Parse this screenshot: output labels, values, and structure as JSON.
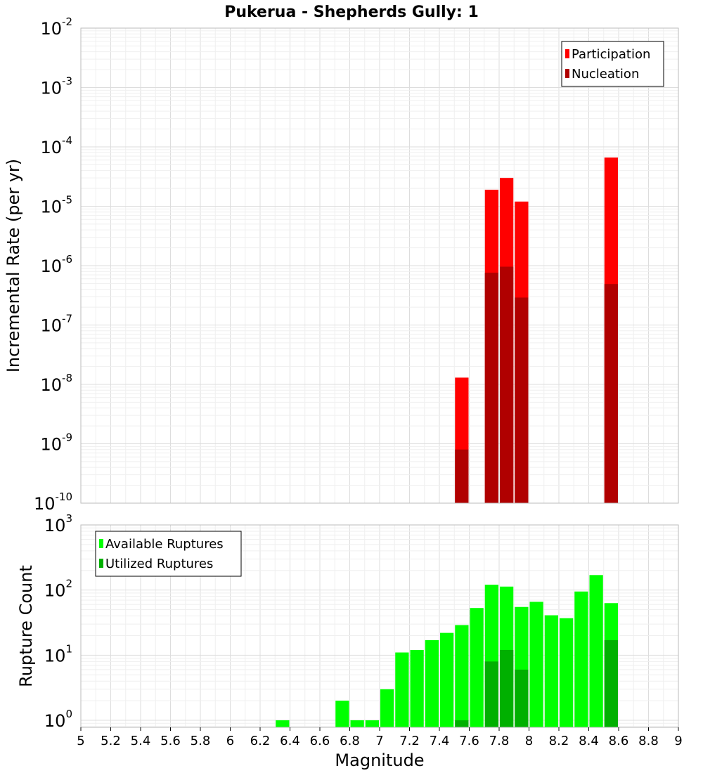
{
  "chart_data": [
    {
      "type": "bar",
      "title": "Pukerua - Shepherds Gully: 1",
      "xlabel": "Magnitude",
      "ylabel": "Incremental Rate (per yr)",
      "yscale": "log",
      "xlim": [
        5,
        9
      ],
      "ylim": [
        1e-10,
        0.01
      ],
      "bin_width": 0.1,
      "legend_position": "top-right",
      "colors": {
        "Participation": "#ff0000",
        "Nucleation": "#b00000"
      },
      "series": [
        {
          "name": "Participation",
          "x": [
            7.55,
            7.75,
            7.85,
            7.95,
            8.55
          ],
          "values": [
            1.3e-08,
            1.9e-05,
            3e-05,
            1.2e-05,
            6.6e-05
          ]
        },
        {
          "name": "Nucleation",
          "x": [
            7.55,
            7.75,
            7.85,
            7.95,
            8.55
          ],
          "values": [
            8e-10,
            7.6e-07,
            9.6e-07,
            2.9e-07,
            4.9e-07
          ]
        }
      ],
      "y_ticks": [
        {
          "base": "10",
          "exp": "-10"
        },
        {
          "base": "10",
          "exp": "-9"
        },
        {
          "base": "10",
          "exp": "-8"
        },
        {
          "base": "10",
          "exp": "-7"
        },
        {
          "base": "10",
          "exp": "-6"
        },
        {
          "base": "10",
          "exp": "-5"
        },
        {
          "base": "10",
          "exp": "-4"
        },
        {
          "base": "10",
          "exp": "-3"
        },
        {
          "base": "10",
          "exp": "-2"
        }
      ]
    },
    {
      "type": "bar",
      "xlabel": "Magnitude",
      "ylabel": "Rupture Count",
      "yscale": "log",
      "xlim": [
        5,
        9
      ],
      "ylim": [
        0.78,
        1000
      ],
      "bin_width": 0.1,
      "legend_position": "top-left",
      "colors": {
        "Available Ruptures": "#00ff00",
        "Utilized Ruptures": "#00b000"
      },
      "series": [
        {
          "name": "Available Ruptures",
          "x": [
            6.35,
            6.75,
            6.85,
            6.95,
            7.05,
            7.15,
            7.25,
            7.35,
            7.45,
            7.55,
            7.65,
            7.75,
            7.85,
            7.95,
            8.05,
            8.15,
            8.25,
            8.35,
            8.45,
            8.55
          ],
          "values": [
            1,
            2,
            1,
            1,
            3,
            11,
            12,
            17,
            22,
            29,
            53,
            121,
            113,
            55,
            66,
            41,
            37,
            95,
            170,
            63
          ]
        },
        {
          "name": "Utilized Ruptures",
          "x": [
            7.55,
            7.75,
            7.85,
            7.95,
            8.55
          ],
          "values": [
            1,
            8,
            12,
            6,
            17
          ]
        }
      ],
      "y_ticks": [
        {
          "base": "10",
          "exp": "0"
        },
        {
          "base": "10",
          "exp": "1"
        },
        {
          "base": "10",
          "exp": "2"
        },
        {
          "base": "10",
          "exp": "3"
        }
      ],
      "x_ticks": [
        "5",
        "5.2",
        "5.4",
        "5.6",
        "5.8",
        "6",
        "6.2",
        "6.4",
        "6.6",
        "6.8",
        "7",
        "7.2",
        "7.4",
        "7.6",
        "7.8",
        "8",
        "8.2",
        "8.4",
        "8.6",
        "8.8",
        "9"
      ]
    }
  ]
}
